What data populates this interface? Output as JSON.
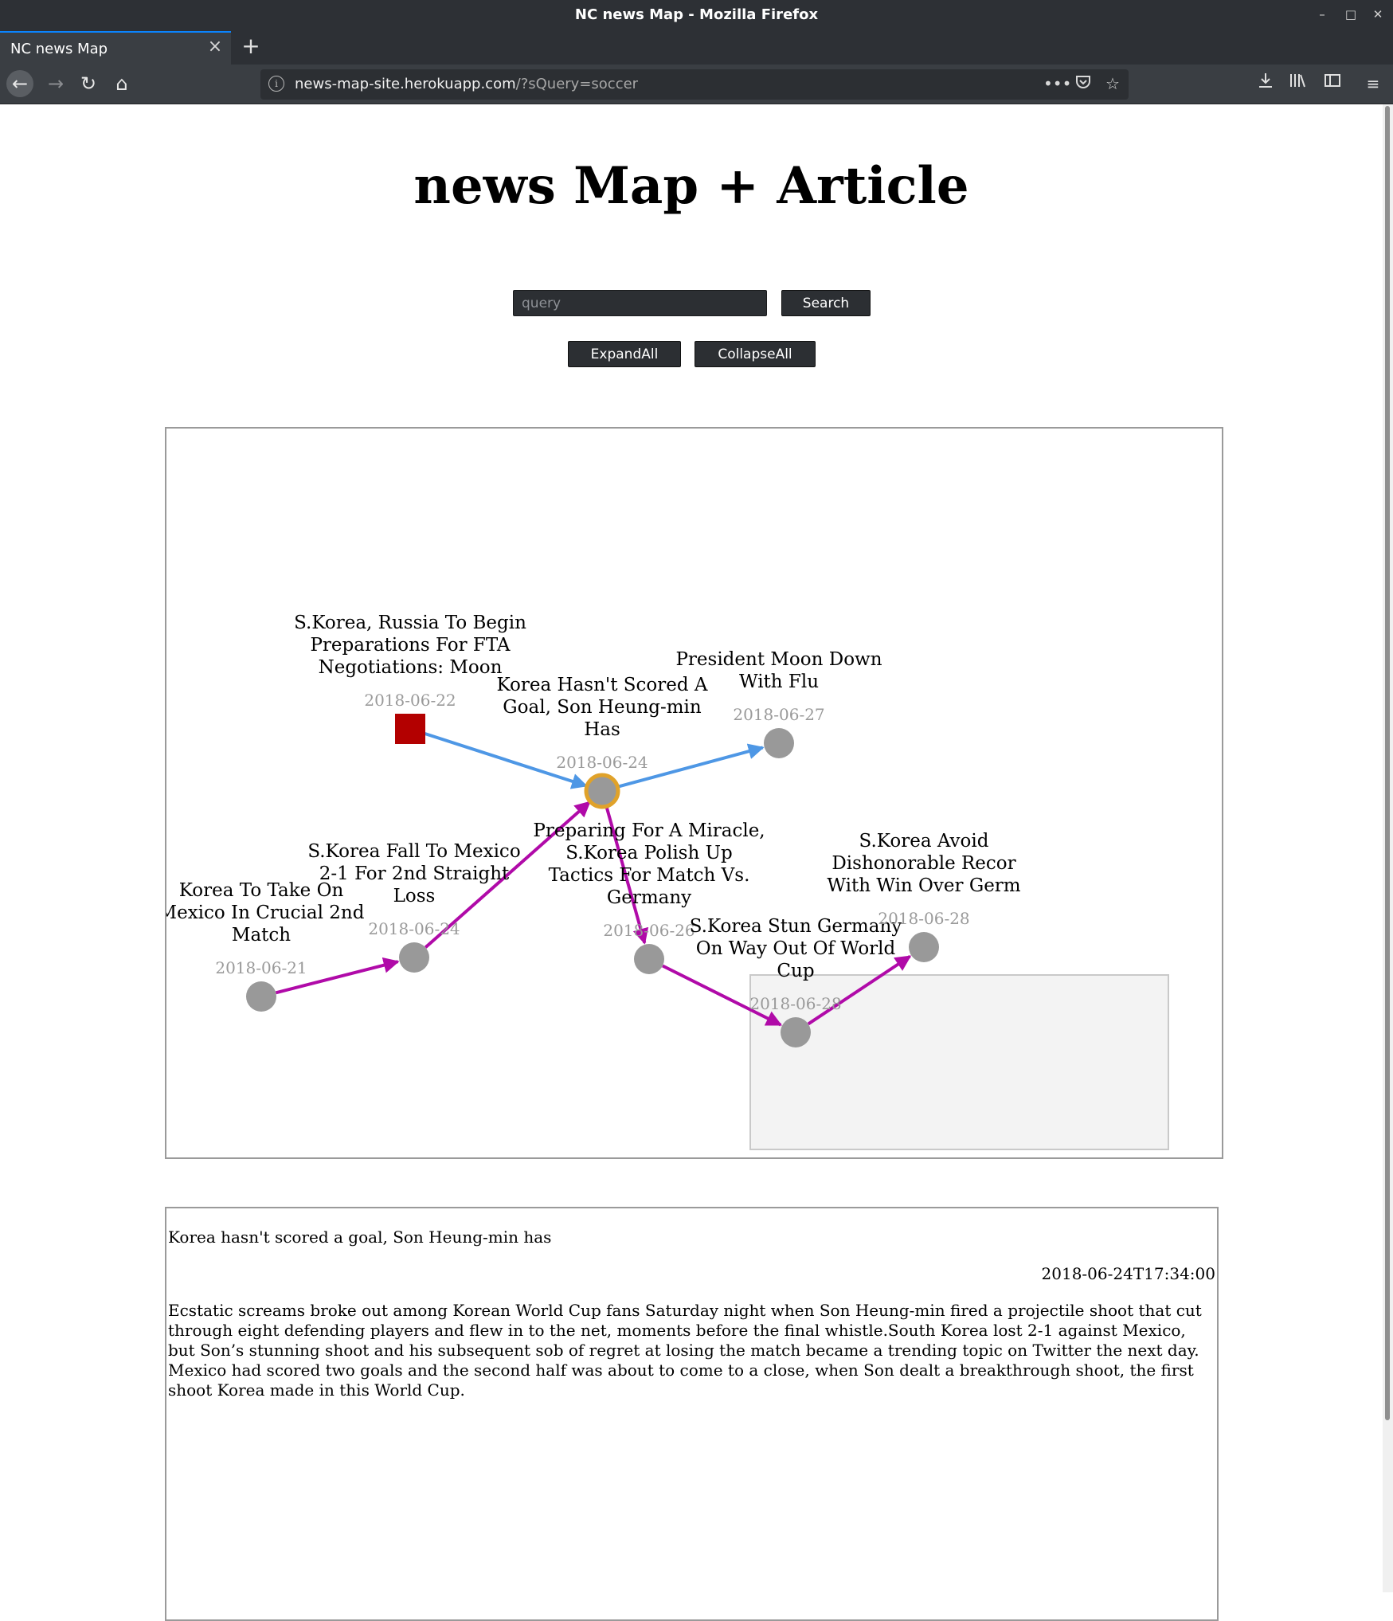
{
  "window": {
    "title": "NC news Map - Mozilla Firefox"
  },
  "tab": {
    "title": "NC news Map"
  },
  "url": {
    "host": "news-map-site.herokuapp.com",
    "path": "/?sQuery=soccer"
  },
  "page": {
    "title": "news Map + Article",
    "search": {
      "placeholder": "query",
      "value": "",
      "button": "Search"
    },
    "expand_label": "ExpandAll",
    "collapse_label": "CollapseAll"
  },
  "colors": {
    "edge_blue": "#4e97e5",
    "edge_purple": "#b00aa8",
    "node_gray": "#999999",
    "selected_ring": "#e0a22a",
    "root_square": "#b30000",
    "group_box": "#f3f3f3"
  },
  "map": {
    "nodes": [
      {
        "id": "n_fta",
        "title": [
          "S.Korea, Russia To Begin",
          "Preparations For FTA",
          "Negotiations: Moon"
        ],
        "date": "2018-06-22",
        "shape": "square"
      },
      {
        "id": "n_center",
        "title": [
          "Korea Hasn't Scored A",
          "Goal, Son Heung-min",
          "Has"
        ],
        "date": "2018-06-24",
        "shape": "circle",
        "selected": true
      },
      {
        "id": "n_moon",
        "title": [
          "President Moon Down",
          "With Flu"
        ],
        "date": "2018-06-27",
        "shape": "circle"
      },
      {
        "id": "n_mexico1",
        "title": [
          "Korea To Take On",
          "Mexico In Crucial 2nd",
          "Match"
        ],
        "date": "2018-06-21",
        "shape": "circle"
      },
      {
        "id": "n_mexico2",
        "title": [
          "S.Korea Fall To Mexico",
          "2-1 For 2nd Straight",
          "Loss"
        ],
        "date": "2018-06-24",
        "shape": "circle"
      },
      {
        "id": "n_miracle",
        "title": [
          "Preparing For A Miracle,",
          "S.Korea Polish Up",
          "Tactics For Match Vs.",
          "Germany"
        ],
        "date": "2018-06-26",
        "shape": "circle"
      },
      {
        "id": "n_stun",
        "title": [
          "S.Korea Stun Germany",
          "On Way Out Of World",
          "Cup"
        ],
        "date": "2018-06-28",
        "shape": "circle"
      },
      {
        "id": "n_avoid",
        "title": [
          "S.Korea Avoid",
          "Dishonorable Recor",
          "With Win Over Germ"
        ],
        "date": "2018-06-28",
        "shape": "circle"
      }
    ],
    "edges": [
      {
        "from": "n_fta",
        "to": "n_center",
        "color": "blue"
      },
      {
        "from": "n_center",
        "to": "n_moon",
        "color": "blue"
      },
      {
        "from": "n_mexico1",
        "to": "n_mexico2",
        "color": "purple"
      },
      {
        "from": "n_mexico2",
        "to": "n_center",
        "color": "purple"
      },
      {
        "from": "n_center",
        "to": "n_miracle",
        "color": "purple"
      },
      {
        "from": "n_miracle",
        "to": "n_stun",
        "color": "purple"
      },
      {
        "from": "n_stun",
        "to": "n_avoid",
        "color": "purple"
      }
    ]
  },
  "article": {
    "title": "Korea hasn't scored a goal, Son Heung-min has",
    "timestamp": "2018-06-24T17:34:00",
    "body": "Ecstatic screams broke out among Korean World Cup fans Saturday night when Son Heung-min fired a projectile shoot that cut through eight defending players and flew in to the net, moments before the final whistle.South Korea lost 2-1 against Mexico, but Son’s stunning shoot and his subsequent sob of regret at losing the match became a trending topic on Twitter the next day. Mexico had scored two goals and the second half was about to come to a close, when Son dealt a breakthrough shoot, the first shoot Korea made in this World Cup."
  }
}
